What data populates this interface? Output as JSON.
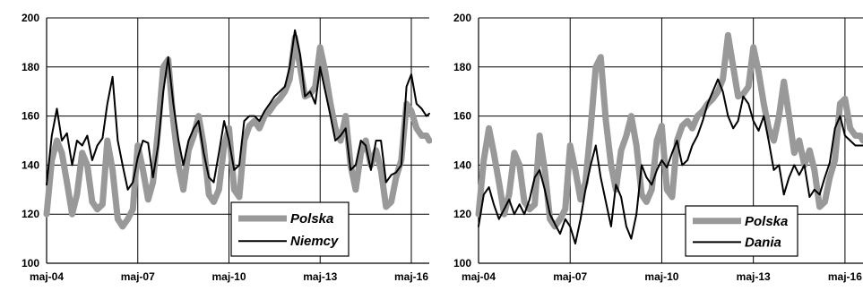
{
  "chart_data": [
    {
      "type": "line",
      "x_tick_labels": [
        "maj-04",
        "maj-07",
        "maj-10",
        "maj-13",
        "maj-16"
      ],
      "y_ticks": [
        100,
        120,
        140,
        160,
        180,
        200
      ],
      "ylim": [
        100,
        200
      ],
      "xlim": [
        2004.33,
        2016.92
      ],
      "grid": true,
      "legend": {
        "position": "bottom-right",
        "entries": [
          "Polska",
          "Niemcy"
        ]
      },
      "series": [
        {
          "name": "Polska",
          "color": "#999999",
          "style": "thick",
          "x": [
            2004.33,
            2004.5,
            2004.67,
            2004.83,
            2005.0,
            2005.17,
            2005.33,
            2005.5,
            2005.67,
            2005.83,
            2006.0,
            2006.17,
            2006.33,
            2006.5,
            2006.67,
            2006.83,
            2007.0,
            2007.17,
            2007.33,
            2007.5,
            2007.67,
            2007.83,
            2008.0,
            2008.17,
            2008.33,
            2008.5,
            2008.67,
            2008.83,
            2009.0,
            2009.17,
            2009.33,
            2009.5,
            2009.67,
            2009.83,
            2010.0,
            2010.17,
            2010.33,
            2010.5,
            2010.67,
            2010.83,
            2011.0,
            2011.17,
            2011.33,
            2011.5,
            2011.67,
            2011.83,
            2012.0,
            2012.17,
            2012.33,
            2012.5,
            2012.67,
            2012.83,
            2013.0,
            2013.17,
            2013.33,
            2013.5,
            2013.67,
            2013.83,
            2014.0,
            2014.17,
            2014.33,
            2014.5,
            2014.67,
            2014.83,
            2015.0,
            2015.17,
            2015.33,
            2015.5,
            2015.67,
            2015.83,
            2016.0,
            2016.17,
            2016.33,
            2016.5,
            2016.67,
            2016.83,
            2016.92
          ],
          "y": [
            120,
            142,
            150,
            145,
            133,
            120,
            128,
            145,
            140,
            125,
            122,
            124,
            150,
            138,
            118,
            115,
            118,
            122,
            148,
            138,
            126,
            133,
            155,
            180,
            183,
            158,
            140,
            130,
            146,
            152,
            160,
            148,
            128,
            125,
            130,
            148,
            155,
            130,
            127,
            150,
            156,
            158,
            155,
            160,
            162,
            165,
            167,
            170,
            175,
            192,
            180,
            168,
            169,
            172,
            188,
            178,
            165,
            155,
            150,
            160,
            140,
            130,
            145,
            150,
            140,
            146,
            138,
            123,
            125,
            135,
            142,
            165,
            162,
            155,
            152,
            152,
            150
          ]
        },
        {
          "name": "Niemcy",
          "color": "#000000",
          "style": "thin",
          "x": [
            2004.33,
            2004.5,
            2004.67,
            2004.83,
            2005.0,
            2005.17,
            2005.33,
            2005.5,
            2005.67,
            2005.83,
            2006.0,
            2006.17,
            2006.33,
            2006.5,
            2006.67,
            2006.83,
            2007.0,
            2007.17,
            2007.33,
            2007.5,
            2007.67,
            2007.83,
            2008.0,
            2008.17,
            2008.33,
            2008.5,
            2008.67,
            2008.83,
            2009.0,
            2009.17,
            2009.33,
            2009.5,
            2009.67,
            2009.83,
            2010.0,
            2010.17,
            2010.33,
            2010.5,
            2010.67,
            2010.83,
            2011.0,
            2011.17,
            2011.33,
            2011.5,
            2011.67,
            2011.83,
            2012.0,
            2012.17,
            2012.33,
            2012.5,
            2012.67,
            2012.83,
            2013.0,
            2013.17,
            2013.33,
            2013.5,
            2013.67,
            2013.83,
            2014.0,
            2014.17,
            2014.33,
            2014.5,
            2014.67,
            2014.83,
            2015.0,
            2015.17,
            2015.33,
            2015.5,
            2015.67,
            2015.83,
            2016.0,
            2016.17,
            2016.33,
            2016.5,
            2016.67,
            2016.83,
            2016.92
          ],
          "y": [
            132,
            152,
            163,
            150,
            153,
            140,
            150,
            148,
            152,
            142,
            148,
            151,
            165,
            176,
            150,
            140,
            130,
            133,
            143,
            150,
            149,
            135,
            148,
            170,
            184,
            165,
            150,
            140,
            150,
            155,
            158,
            145,
            135,
            133,
            145,
            158,
            150,
            138,
            140,
            158,
            160,
            160,
            158,
            162,
            165,
            168,
            170,
            172,
            180,
            195,
            185,
            168,
            170,
            165,
            180,
            170,
            160,
            150,
            152,
            155,
            138,
            140,
            150,
            148,
            138,
            150,
            150,
            133,
            136,
            137,
            140,
            172,
            177,
            165,
            163,
            160,
            161
          ]
        }
      ]
    },
    {
      "type": "line",
      "x_tick_labels": [
        "maj-04",
        "maj-07",
        "maj-10",
        "maj-13",
        "maj-16"
      ],
      "y_ticks": [
        100,
        120,
        140,
        160,
        180,
        200
      ],
      "ylim": [
        100,
        200
      ],
      "xlim": [
        2004.33,
        2016.92
      ],
      "grid": true,
      "legend": {
        "position": "bottom-right",
        "entries": [
          "Polska",
          "Dania"
        ]
      },
      "series": [
        {
          "name": "Polska",
          "color": "#999999",
          "style": "thick",
          "x": [
            2004.33,
            2004.5,
            2004.67,
            2004.83,
            2005.0,
            2005.17,
            2005.33,
            2005.5,
            2005.67,
            2005.83,
            2006.0,
            2006.17,
            2006.33,
            2006.5,
            2006.67,
            2006.83,
            2007.0,
            2007.17,
            2007.33,
            2007.5,
            2007.67,
            2007.83,
            2008.0,
            2008.17,
            2008.33,
            2008.5,
            2008.67,
            2008.83,
            2009.0,
            2009.17,
            2009.33,
            2009.5,
            2009.67,
            2009.83,
            2010.0,
            2010.17,
            2010.33,
            2010.5,
            2010.67,
            2010.83,
            2011.0,
            2011.17,
            2011.33,
            2011.5,
            2011.67,
            2011.83,
            2012.0,
            2012.17,
            2012.33,
            2012.5,
            2012.67,
            2012.83,
            2013.0,
            2013.17,
            2013.33,
            2013.5,
            2013.67,
            2013.83,
            2014.0,
            2014.17,
            2014.33,
            2014.5,
            2014.67,
            2014.83,
            2015.0,
            2015.17,
            2015.33,
            2015.5,
            2015.67,
            2015.83,
            2016.0,
            2016.17,
            2016.33,
            2016.5,
            2016.67,
            2016.83,
            2016.92
          ],
          "y": [
            120,
            142,
            155,
            145,
            133,
            120,
            128,
            145,
            140,
            125,
            122,
            124,
            152,
            138,
            118,
            115,
            118,
            122,
            148,
            138,
            126,
            133,
            155,
            180,
            184,
            158,
            140,
            130,
            146,
            152,
            160,
            148,
            128,
            125,
            130,
            150,
            156,
            130,
            127,
            150,
            156,
            158,
            155,
            160,
            162,
            165,
            167,
            170,
            175,
            193,
            180,
            168,
            169,
            172,
            188,
            178,
            165,
            155,
            150,
            160,
            174,
            160,
            145,
            150,
            140,
            146,
            138,
            123,
            125,
            135,
            142,
            165,
            167,
            155,
            152,
            152,
            150
          ]
        },
        {
          "name": "Dania",
          "color": "#000000",
          "style": "thin",
          "x": [
            2004.33,
            2004.5,
            2004.67,
            2004.83,
            2005.0,
            2005.17,
            2005.33,
            2005.5,
            2005.67,
            2005.83,
            2006.0,
            2006.17,
            2006.33,
            2006.5,
            2006.67,
            2006.83,
            2007.0,
            2007.17,
            2007.33,
            2007.5,
            2007.67,
            2007.83,
            2008.0,
            2008.17,
            2008.33,
            2008.5,
            2008.67,
            2008.83,
            2009.0,
            2009.17,
            2009.33,
            2009.5,
            2009.67,
            2009.83,
            2010.0,
            2010.17,
            2010.33,
            2010.5,
            2010.67,
            2010.83,
            2011.0,
            2011.17,
            2011.33,
            2011.5,
            2011.67,
            2011.83,
            2012.0,
            2012.17,
            2012.33,
            2012.5,
            2012.67,
            2012.83,
            2013.0,
            2013.17,
            2013.33,
            2013.5,
            2013.67,
            2013.83,
            2014.0,
            2014.17,
            2014.33,
            2014.5,
            2014.67,
            2014.83,
            2015.0,
            2015.17,
            2015.33,
            2015.5,
            2015.67,
            2015.83,
            2016.0,
            2016.17,
            2016.33,
            2016.5,
            2016.67,
            2016.83,
            2016.92
          ],
          "y": [
            115,
            128,
            131,
            124,
            118,
            122,
            126,
            120,
            124,
            120,
            126,
            135,
            138,
            130,
            120,
            116,
            112,
            118,
            115,
            108,
            118,
            130,
            140,
            148,
            135,
            125,
            115,
            132,
            127,
            115,
            110,
            120,
            140,
            135,
            132,
            138,
            142,
            139,
            145,
            150,
            140,
            142,
            148,
            152,
            158,
            165,
            170,
            175,
            170,
            160,
            155,
            158,
            168,
            165,
            158,
            154,
            160,
            150,
            138,
            140,
            128,
            135,
            140,
            136,
            140,
            127,
            130,
            128,
            135,
            141,
            155,
            160,
            152,
            150,
            148,
            148,
            148
          ]
        }
      ]
    }
  ]
}
